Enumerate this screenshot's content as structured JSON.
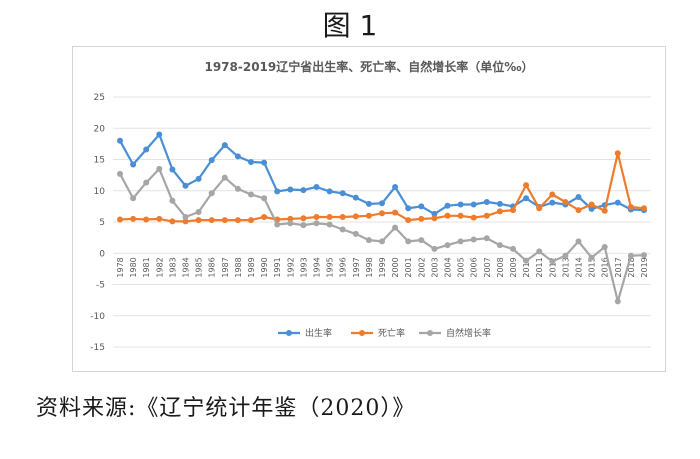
{
  "figure_label": "图 1",
  "source_note": "资料来源:《辽宁统计年鉴（2020）》",
  "colors": {
    "birth": "#4a8fd6",
    "death": "#ee7c2c",
    "natural": "#a6a6a6",
    "grid": "#e3e3e3",
    "axis_text": "#595959"
  },
  "chart_data": {
    "type": "line",
    "title": "1978-2019辽宁省出生率、死亡率、自然增长率（单位‰）",
    "xlabel": "",
    "ylabel": "",
    "ylim": [
      -15,
      25
    ],
    "yticks": [
      -15,
      -10,
      -5,
      0,
      5,
      10,
      15,
      20,
      25
    ],
    "grid": true,
    "legend_position": "bottom",
    "categories": [
      "1978",
      "1980",
      "1981",
      "1982",
      "1983",
      "1984",
      "1985",
      "1986",
      "1987",
      "1988",
      "1989",
      "1990",
      "1991",
      "1992",
      "1993",
      "1994",
      "1995",
      "1996",
      "1997",
      "1998",
      "1999",
      "2000",
      "2001",
      "2002",
      "2003",
      "2004",
      "2005",
      "2006",
      "2007",
      "2008",
      "2009",
      "2010",
      "2011",
      "2012",
      "2013",
      "2014",
      "2015",
      "2016",
      "2017",
      "2018",
      "2019"
    ],
    "series": [
      {
        "name": "出生率",
        "color_key": "birth",
        "values": [
          18.0,
          14.2,
          16.6,
          19.0,
          13.4,
          10.8,
          11.9,
          14.9,
          17.3,
          15.5,
          14.6,
          14.5,
          9.9,
          10.2,
          10.1,
          10.6,
          9.9,
          9.6,
          8.9,
          7.9,
          8.0,
          10.6,
          7.2,
          7.5,
          6.3,
          7.6,
          7.8,
          7.8,
          8.2,
          7.9,
          7.5,
          8.8,
          7.4,
          8.1,
          7.8,
          9.0,
          7.1,
          7.7,
          8.1,
          7.0,
          6.9
        ]
      },
      {
        "name": "死亡率",
        "color_key": "death",
        "values": [
          5.4,
          5.5,
          5.4,
          5.5,
          5.1,
          5.1,
          5.3,
          5.3,
          5.3,
          5.3,
          5.3,
          5.8,
          5.4,
          5.5,
          5.6,
          5.8,
          5.8,
          5.8,
          5.9,
          6.0,
          6.4,
          6.5,
          5.3,
          5.5,
          5.6,
          6.0,
          6.0,
          5.7,
          6.0,
          6.7,
          6.9,
          10.9,
          7.2,
          9.4,
          8.2,
          6.9,
          7.8,
          6.8,
          16.0,
          7.4,
          7.2
        ]
      },
      {
        "name": "自然增长率",
        "color_key": "natural",
        "values": [
          12.7,
          8.8,
          11.3,
          13.5,
          8.4,
          5.8,
          6.6,
          9.6,
          12.1,
          10.3,
          9.4,
          8.8,
          4.6,
          4.8,
          4.5,
          4.8,
          4.6,
          3.8,
          3.1,
          2.1,
          1.9,
          4.1,
          1.9,
          2.1,
          0.7,
          1.3,
          1.9,
          2.2,
          2.4,
          1.3,
          0.7,
          -1.2,
          0.3,
          -1.3,
          -0.4,
          1.9,
          -0.7,
          1.0,
          -7.7,
          -0.4,
          -0.3
        ]
      }
    ]
  }
}
